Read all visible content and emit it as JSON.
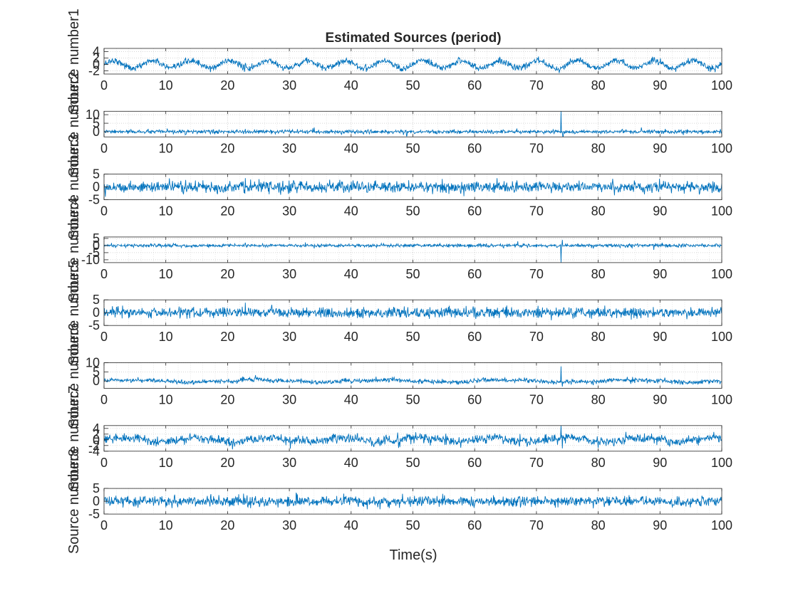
{
  "figure": {
    "title": "Estimated Sources (period)",
    "xlabel": "Time(s)"
  },
  "chart_data": [
    {
      "type": "line",
      "series": [
        {
          "name": "",
          "color": "#0072BD",
          "pattern": "sine",
          "amplitude": 1.2,
          "period": 6.25,
          "noise": 0.5,
          "spikes": []
        }
      ],
      "x": {
        "start": 0,
        "end": 100,
        "points": 1400
      },
      "xlim": [
        0,
        100
      ],
      "xticks": [
        0,
        10,
        20,
        30,
        40,
        50,
        60,
        70,
        80,
        90,
        100
      ],
      "ylim": [
        -3,
        5
      ],
      "yticks": [
        -2,
        0,
        2,
        4
      ],
      "ylabel": "Source number1",
      "grid": true,
      "minor_grid": true
    },
    {
      "type": "line",
      "series": [
        {
          "name": "",
          "color": "#0072BD",
          "pattern": "noise",
          "amplitude": 0,
          "period": 0,
          "noise": 0.55,
          "spikes": [
            [
              74,
              12
            ],
            [
              74.3,
              -3
            ],
            [
              34,
              2.5
            ],
            [
              49,
              -2.5
            ],
            [
              87,
              2.5
            ]
          ]
        }
      ],
      "x": {
        "start": 0,
        "end": 100,
        "points": 1400
      },
      "xlim": [
        0,
        100
      ],
      "xticks": [
        0,
        10,
        20,
        30,
        40,
        50,
        60,
        70,
        80,
        90,
        100
      ],
      "ylim": [
        -3,
        12
      ],
      "yticks": [
        0,
        5,
        10
      ],
      "ylabel": "Source number2",
      "grid": true,
      "minor_grid": true
    },
    {
      "type": "line",
      "series": [
        {
          "name": "",
          "color": "#0072BD",
          "pattern": "noise",
          "amplitude": 0,
          "period": 0,
          "noise": 1.1,
          "spikes": []
        }
      ],
      "x": {
        "start": 0,
        "end": 100,
        "points": 1400
      },
      "xlim": [
        0,
        100
      ],
      "xticks": [
        0,
        10,
        20,
        30,
        40,
        50,
        60,
        70,
        80,
        90,
        100
      ],
      "ylim": [
        -5,
        5
      ],
      "yticks": [
        -5,
        0,
        5
      ],
      "ylabel": "Source number3",
      "grid": true,
      "minor_grid": true
    },
    {
      "type": "line",
      "series": [
        {
          "name": "",
          "color": "#0072BD",
          "pattern": "noise",
          "amplitude": 0,
          "period": 0,
          "noise": 0.6,
          "spikes": [
            [
              74,
              -12
            ],
            [
              74.2,
              4
            ],
            [
              67,
              3
            ],
            [
              89,
              -3
            ],
            [
              34,
              -2
            ]
          ]
        }
      ],
      "x": {
        "start": 0,
        "end": 100,
        "points": 1400
      },
      "xlim": [
        0,
        100
      ],
      "xticks": [
        0,
        10,
        20,
        30,
        40,
        50,
        60,
        70,
        80,
        90,
        100
      ],
      "ylim": [
        -12,
        6
      ],
      "yticks": [
        -10,
        -5,
        0,
        5
      ],
      "ylabel": "Source number4",
      "grid": true,
      "minor_grid": true
    },
    {
      "type": "line",
      "series": [
        {
          "name": "",
          "color": "#0072BD",
          "pattern": "noise",
          "amplitude": 0,
          "period": 0,
          "noise": 1.0,
          "spikes": []
        }
      ],
      "x": {
        "start": 0,
        "end": 100,
        "points": 1400
      },
      "xlim": [
        0,
        100
      ],
      "xticks": [
        0,
        10,
        20,
        30,
        40,
        50,
        60,
        70,
        80,
        90,
        100
      ],
      "ylim": [
        -5,
        5
      ],
      "yticks": [
        -5,
        0,
        5
      ],
      "ylabel": "Source number5",
      "grid": true,
      "minor_grid": true
    },
    {
      "type": "line",
      "series": [
        {
          "name": "",
          "color": "#0072BD",
          "pattern": "wave",
          "amplitude": 0.6,
          "period": 20,
          "noise": 0.6,
          "spikes": [
            [
              74,
              8
            ],
            [
              74.2,
              -3
            ]
          ]
        }
      ],
      "x": {
        "start": 0,
        "end": 100,
        "points": 1400
      },
      "xlim": [
        0,
        100
      ],
      "xticks": [
        0,
        10,
        20,
        30,
        40,
        50,
        60,
        70,
        80,
        90,
        100
      ],
      "ylim": [
        -4,
        10
      ],
      "yticks": [
        0,
        5,
        10
      ],
      "ylabel": "Source number6",
      "grid": true,
      "minor_grid": true
    },
    {
      "type": "line",
      "series": [
        {
          "name": "",
          "color": "#0072BD",
          "pattern": "wave",
          "amplitude": 0.7,
          "period": 12,
          "noise": 0.8,
          "spikes": [
            [
              74,
              5
            ],
            [
              74.2,
              -3
            ]
          ]
        }
      ],
      "x": {
        "start": 0,
        "end": 100,
        "points": 1400
      },
      "xlim": [
        0,
        100
      ],
      "xticks": [
        0,
        10,
        20,
        30,
        40,
        50,
        60,
        70,
        80,
        90,
        100
      ],
      "ylim": [
        -4,
        5
      ],
      "yticks": [
        -4,
        -2,
        0,
        2,
        4
      ],
      "ylabel": "Source number7",
      "grid": true,
      "minor_grid": true
    },
    {
      "type": "line",
      "series": [
        {
          "name": "",
          "color": "#0072BD",
          "pattern": "noise",
          "amplitude": 0,
          "period": 0,
          "noise": 1.0,
          "spikes": []
        }
      ],
      "x": {
        "start": 0,
        "end": 100,
        "points": 1400
      },
      "xlim": [
        0,
        100
      ],
      "xticks": [
        0,
        10,
        20,
        30,
        40,
        50,
        60,
        70,
        80,
        90,
        100
      ],
      "ylim": [
        -5,
        5
      ],
      "yticks": [
        -5,
        0,
        5
      ],
      "ylabel": "Source number8",
      "grid": true,
      "minor_grid": true
    }
  ]
}
